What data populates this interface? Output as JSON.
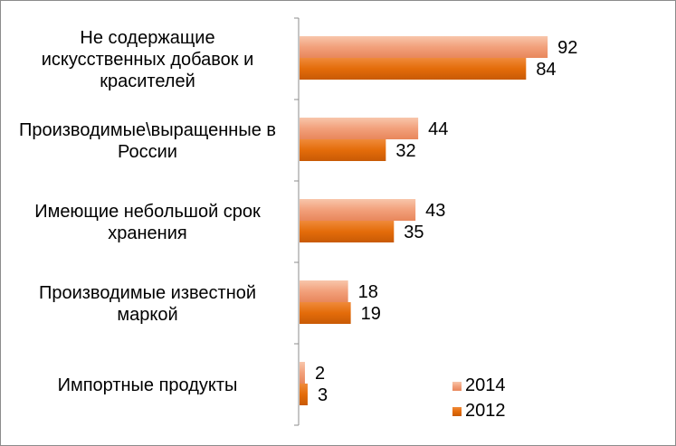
{
  "chart_data": {
    "type": "bar",
    "orientation": "horizontal",
    "categories": [
      "Не содержащие искусственных добавок и красителей",
      "Производимые\\выращенные в России",
      "Имеющие небольшой срок хранения",
      "Производимые известной маркой",
      "Импортные продукты"
    ],
    "category_lines": [
      [
        "Не содержащие",
        "искусственных добавок и",
        "красителей"
      ],
      [
        "Производимые\\выращенные в",
        "России"
      ],
      [
        "Имеющие небольшой срок",
        "хранения"
      ],
      [
        "Производимые известной",
        "маркой"
      ],
      [
        "Импортные продукты"
      ]
    ],
    "series": [
      {
        "name": "2014",
        "values": [
          92,
          44,
          43,
          18,
          2
        ],
        "color": "#f2a07b"
      },
      {
        "name": "2012",
        "values": [
          84,
          32,
          35,
          19,
          3
        ],
        "color": "#e46c0a"
      }
    ],
    "xlim": [
      0,
      100
    ],
    "grid": false,
    "legend": "bottom-right"
  }
}
